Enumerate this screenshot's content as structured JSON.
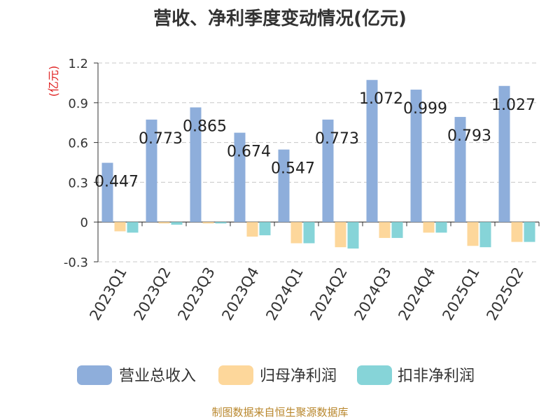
{
  "title": "营收、净利季度变动情况(亿元)",
  "source": "制图数据来自恒生聚源数据库",
  "colors": {
    "营业总收入": "#8eaedb",
    "归母净利润": "#fdd79b",
    "扣非净利润": "#86d4d8"
  },
  "chart_data": {
    "type": "bar",
    "title": "营收、净利季度变动情况(亿元)",
    "ylabel": "(亿元)",
    "ylim": [
      -0.3,
      1.2
    ],
    "yticks": [
      "1.2",
      "0.9",
      "0.6",
      "0.3",
      "0",
      "-0.3"
    ],
    "ytick_values": [
      1.2,
      0.9,
      0.6,
      0.3,
      0,
      -0.3
    ],
    "grid": true,
    "legend_position": "bottom",
    "categories": [
      "2023Q1",
      "2023Q2",
      "2023Q3",
      "2023Q4",
      "2024Q1",
      "2024Q2",
      "2024Q3",
      "2024Q4",
      "2025Q1",
      "2025Q2"
    ],
    "series": [
      {
        "name": "营业总收入",
        "values": [
          0.447,
          0.773,
          0.865,
          0.674,
          0.547,
          0.773,
          1.072,
          0.999,
          0.793,
          1.027
        ],
        "labels": [
          "0.447",
          "0.773",
          "0.865",
          "0.674",
          "0.547",
          "0.773",
          "1.072",
          "0.999",
          "0.793",
          "1.027"
        ]
      },
      {
        "name": "归母净利润",
        "values": [
          -0.07,
          -0.003,
          -0.002,
          -0.11,
          -0.16,
          -0.19,
          -0.12,
          -0.08,
          -0.18,
          -0.15
        ]
      },
      {
        "name": "扣非净利润",
        "values": [
          -0.08,
          -0.02,
          -0.01,
          -0.1,
          -0.16,
          -0.2,
          -0.12,
          -0.08,
          -0.19,
          -0.15
        ]
      }
    ]
  }
}
